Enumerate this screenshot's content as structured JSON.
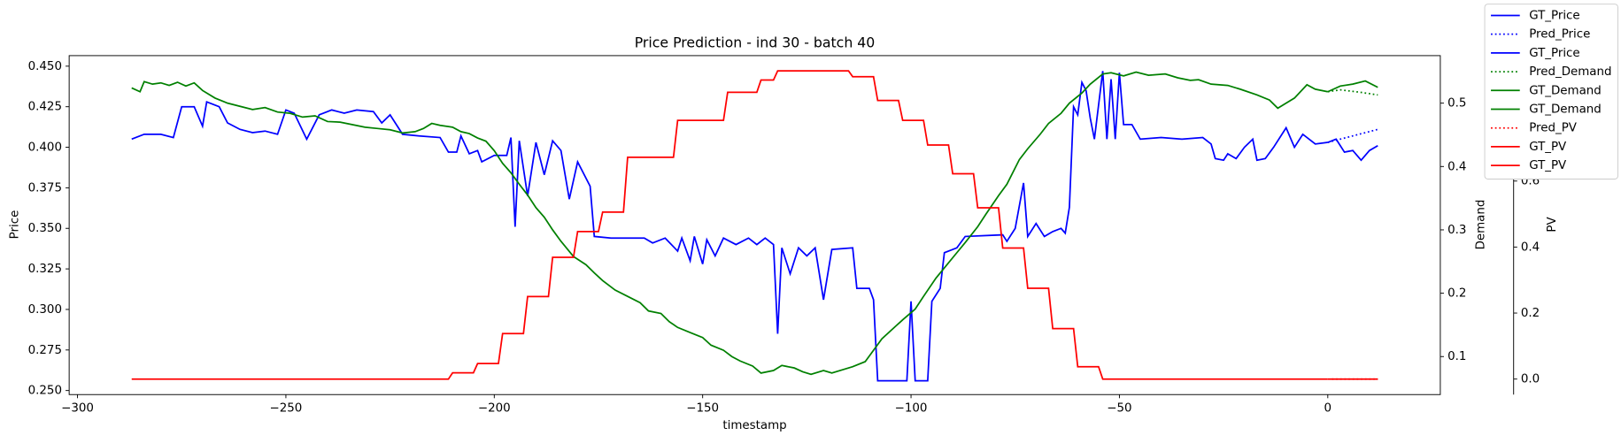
{
  "chart_data": {
    "type": "line",
    "title": "Price Prediction - ind 30 - batch 40",
    "xlabel": "timestamp",
    "ylabel": "Price",
    "y2label": "Demand",
    "y3label": "PV",
    "ylabel_color": "blue",
    "y2label_color": "green",
    "y3label_color": "red",
    "xlim": [
      -302,
      27
    ],
    "xticks": [
      {
        "value": -300,
        "label": "−300"
      },
      {
        "value": -250,
        "label": "−250"
      },
      {
        "value": -200,
        "label": "−200"
      },
      {
        "value": -150,
        "label": "−150"
      },
      {
        "value": -100,
        "label": "−100"
      },
      {
        "value": -50,
        "label": "−50"
      },
      0
    ],
    "ylim": [
      0.2475,
      0.4565
    ],
    "yticks": [
      {
        "value": 0.25,
        "label": "0.250"
      },
      {
        "value": 0.275,
        "label": "0.275"
      },
      {
        "value": 0.3,
        "label": "0.300"
      },
      {
        "value": 0.325,
        "label": "0.325"
      },
      {
        "value": 0.35,
        "label": "0.350"
      },
      {
        "value": 0.375,
        "label": "0.375"
      },
      {
        "value": 0.4,
        "label": "0.400"
      },
      {
        "value": 0.425,
        "label": "0.425"
      },
      {
        "value": 0.45,
        "label": "0.450"
      }
    ],
    "y2lim": [
      0.04,
      0.575
    ],
    "y2ticks": [
      0.1,
      0.2,
      0.3,
      0.4,
      0.5
    ],
    "y3lim": [
      -0.047,
      0.98
    ],
    "y3ticks": [
      {
        "value": 0,
        "label": "0.0"
      },
      0.2,
      0.4,
      0.6
    ],
    "legend": "upper right",
    "series": [
      {
        "name": "GT_Price",
        "color": "blue",
        "linestyle": "solid",
        "axis": "y",
        "x": [
          -287,
          -284,
          -280,
          -277,
          -275,
          -272,
          -270,
          -269,
          -266,
          -264,
          -261,
          -258,
          -255,
          -252,
          -250,
          -248,
          -245,
          -242,
          -239,
          -236,
          -233,
          -229,
          -227,
          -225,
          -222,
          -218,
          -213,
          -211,
          -209,
          -208,
          -206,
          -204,
          -203,
          -200,
          -197,
          -196,
          -195,
          -194,
          -192,
          -190,
          -188,
          -186,
          -184,
          -182,
          -180,
          -177,
          -176,
          -172,
          -164,
          -162,
          -159,
          -156,
          -155,
          -153,
          -152,
          -150,
          -149,
          -147,
          -145,
          -142,
          -139,
          -137,
          -135,
          -133,
          -132,
          -131,
          -129,
          -127,
          -125,
          -123,
          -121,
          -119,
          -114,
          -113,
          -110,
          -109,
          -108,
          -101,
          -100,
          -99,
          -96,
          -95,
          -93,
          -92,
          -89,
          -87,
          -78,
          -77,
          -75,
          -73,
          -72,
          -70,
          -68,
          -66,
          -64,
          -63,
          -62,
          -61,
          -60,
          -59,
          -58,
          -57,
          -56,
          -54,
          -53,
          -52,
          -51,
          -50,
          -49,
          -47,
          -45,
          -40,
          -35,
          -30,
          -28,
          -27,
          -25,
          -24,
          -22,
          -20,
          -18,
          -17,
          -15,
          -13,
          -10,
          -8,
          -6,
          -3,
          0
        ],
        "values": [
          0.405,
          0.408,
          0.408,
          0.406,
          0.425,
          0.425,
          0.413,
          0.428,
          0.425,
          0.415,
          0.411,
          0.409,
          0.41,
          0.408,
          0.423,
          0.421,
          0.405,
          0.42,
          0.423,
          0.421,
          0.423,
          0.422,
          0.415,
          0.42,
          0.408,
          0.407,
          0.406,
          0.397,
          0.397,
          0.407,
          0.396,
          0.398,
          0.391,
          0.395,
          0.395,
          0.406,
          0.351,
          0.404,
          0.37,
          0.403,
          0.383,
          0.404,
          0.398,
          0.368,
          0.391,
          0.376,
          0.345,
          0.344,
          0.344,
          0.341,
          0.344,
          0.336,
          0.344,
          0.33,
          0.345,
          0.328,
          0.343,
          0.333,
          0.344,
          0.34,
          0.344,
          0.34,
          0.344,
          0.34,
          0.285,
          0.338,
          0.322,
          0.338,
          0.333,
          0.338,
          0.306,
          0.337,
          0.338,
          0.313,
          0.313,
          0.306,
          0.256,
          0.256,
          0.305,
          0.256,
          0.256,
          0.305,
          0.313,
          0.335,
          0.338,
          0.345,
          0.346,
          0.342,
          0.35,
          0.378,
          0.345,
          0.353,
          0.345,
          0.348,
          0.35,
          0.347,
          0.363,
          0.425,
          0.42,
          0.44,
          0.435,
          0.418,
          0.405,
          0.447,
          0.405,
          0.442,
          0.405,
          0.446,
          0.414,
          0.414,
          0.405,
          0.406,
          0.405,
          0.406,
          0.402,
          0.393,
          0.392,
          0.396,
          0.393,
          0.4,
          0.405,
          0.392,
          0.393,
          0.4,
          0.412,
          0.4,
          0.408,
          0.402,
          0.403
        ]
      },
      {
        "name": "Pred_Price",
        "color": "blue",
        "linestyle": "dotted",
        "axis": "y",
        "x": [
          0,
          3,
          6,
          9,
          12
        ],
        "values": [
          0.403,
          0.405,
          0.407,
          0.409,
          0.411
        ]
      },
      {
        "name": "GT_Price",
        "color": "blue",
        "linestyle": "solid",
        "axis": "y",
        "x": [
          0,
          2,
          4,
          6,
          8,
          10,
          12
        ],
        "values": [
          0.403,
          0.405,
          0.397,
          0.398,
          0.392,
          0.398,
          0.401
        ]
      },
      {
        "name": "Pred_Demand",
        "color": "green",
        "linestyle": "dotted",
        "axis": "y2",
        "x": [
          0,
          3,
          8,
          12
        ],
        "values": [
          0.518,
          0.521,
          0.517,
          0.513
        ]
      },
      {
        "name": "GT_Demand",
        "color": "green",
        "linestyle": "solid",
        "axis": "y2",
        "x": [
          -287,
          -285,
          -284,
          -282,
          -280,
          -278,
          -276,
          -274,
          -272,
          -270,
          -267,
          -264,
          -261,
          -258,
          -255,
          -252,
          -249,
          -246,
          -243,
          -240,
          -237,
          -234,
          -231,
          -228,
          -225,
          -222,
          -219,
          -217,
          -215,
          -213,
          -210,
          -208,
          -206,
          -204,
          -202,
          -200,
          -198,
          -196,
          -194,
          -192,
          -190,
          -188,
          -186,
          -184,
          -181,
          -178,
          -176,
          -174,
          -171,
          -168,
          -165,
          -163,
          -160,
          -158,
          -156,
          -153,
          -150,
          -148,
          -145,
          -143,
          -141,
          -138,
          -136,
          -133,
          -131,
          -128,
          -126,
          -124,
          -121,
          -119,
          -116,
          -114,
          -111,
          -109,
          -107,
          -104,
          -102,
          -99,
          -97,
          -94,
          -92,
          -89,
          -87,
          -84,
          -82,
          -79,
          -77,
          -74,
          -72,
          -69,
          -67,
          -64,
          -62,
          -59,
          -57,
          -54,
          -52,
          -49,
          -46,
          -43,
          -39,
          -36,
          -33,
          -31,
          -28,
          -24,
          -21,
          -17,
          -14,
          -12,
          -10,
          -8,
          -5,
          -3,
          0
        ],
        "values": [
          0.524,
          0.518,
          0.534,
          0.53,
          0.532,
          0.528,
          0.533,
          0.527,
          0.532,
          0.52,
          0.508,
          0.5,
          0.495,
          0.49,
          0.493,
          0.486,
          0.484,
          0.478,
          0.48,
          0.471,
          0.47,
          0.466,
          0.462,
          0.46,
          0.458,
          0.453,
          0.455,
          0.46,
          0.468,
          0.465,
          0.462,
          0.455,
          0.452,
          0.445,
          0.44,
          0.425,
          0.405,
          0.39,
          0.372,
          0.355,
          0.335,
          0.32,
          0.3,
          0.282,
          0.258,
          0.245,
          0.232,
          0.22,
          0.205,
          0.195,
          0.185,
          0.172,
          0.168,
          0.155,
          0.146,
          0.138,
          0.13,
          0.118,
          0.11,
          0.1,
          0.093,
          0.085,
          0.074,
          0.078,
          0.086,
          0.082,
          0.076,
          0.072,
          0.078,
          0.074,
          0.08,
          0.084,
          0.092,
          0.11,
          0.128,
          0.146,
          0.158,
          0.175,
          0.195,
          0.224,
          0.24,
          0.264,
          0.28,
          0.305,
          0.325,
          0.354,
          0.372,
          0.411,
          0.428,
          0.451,
          0.468,
          0.484,
          0.5,
          0.516,
          0.53,
          0.546,
          0.548,
          0.543,
          0.549,
          0.544,
          0.546,
          0.54,
          0.536,
          0.537,
          0.53,
          0.528,
          0.522,
          0.513,
          0.505,
          0.492,
          0.5,
          0.508,
          0.529,
          0.522,
          0.518
        ]
      },
      {
        "name": "GT_Demand",
        "color": "green",
        "linestyle": "solid",
        "axis": "y2",
        "x": [
          0,
          3,
          6,
          9,
          12
        ],
        "values": [
          0.518,
          0.527,
          0.53,
          0.535,
          0.525
        ]
      },
      {
        "name": "Pred_PV",
        "color": "red",
        "linestyle": "dotted",
        "axis": "y3",
        "x": [
          1,
          12
        ],
        "values": [
          0,
          0
        ]
      },
      {
        "name": "GT_PV",
        "color": "red",
        "linestyle": "solid",
        "axis": "y3",
        "x": [
          -287,
          -211,
          -210,
          -205,
          -204,
          -199,
          -198,
          -193,
          -192,
          -187,
          -186,
          -181,
          -180,
          -175,
          -174,
          -169,
          -168,
          -157,
          -156,
          -145,
          -144,
          -137,
          -136,
          -133,
          -132,
          -115,
          -114,
          -109,
          -108,
          -103,
          -102,
          -97,
          -96,
          -91,
          -90,
          -85,
          -84,
          -79,
          -78,
          -73,
          -72,
          -67,
          -66,
          -61,
          -60,
          -55,
          -54,
          0
        ],
        "values": [
          0,
          0,
          0.019,
          0.019,
          0.047,
          0.047,
          0.138,
          0.138,
          0.25,
          0.25,
          0.369,
          0.369,
          0.447,
          0.447,
          0.506,
          0.506,
          0.672,
          0.672,
          0.784,
          0.784,
          0.869,
          0.869,
          0.906,
          0.906,
          0.934,
          0.934,
          0.916,
          0.916,
          0.844,
          0.844,
          0.784,
          0.784,
          0.709,
          0.709,
          0.622,
          0.622,
          0.519,
          0.519,
          0.397,
          0.397,
          0.275,
          0.275,
          0.153,
          0.153,
          0.0375,
          0.0375,
          0,
          0
        ]
      },
      {
        "name": "GT_PV",
        "color": "red",
        "linestyle": "solid",
        "axis": "y3",
        "x": [
          0,
          12
        ],
        "values": [
          0,
          0
        ]
      }
    ]
  }
}
